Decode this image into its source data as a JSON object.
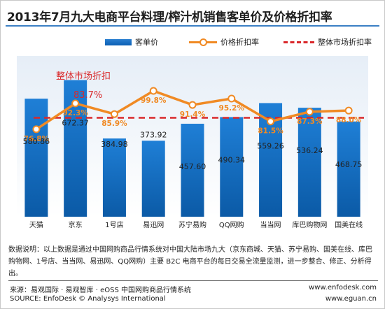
{
  "chart_data": {
    "type": "bar",
    "title": "2013年7月九大电商平台料理/榨汁机销售客单价及价格折扣率",
    "categories": [
      "天猫",
      "京东",
      "1号店",
      "易迅网",
      "苏宁易购",
      "QQ网购",
      "当当网",
      "库巴购物网",
      "国美在线"
    ],
    "series": [
      {
        "name": "客单价",
        "type": "bar",
        "values": [
          580.86,
          672.37,
          384.98,
          373.92,
          457.6,
          490.34,
          559.26,
          536.24,
          468.75
        ],
        "labels": [
          "580.86",
          "672.37",
          "384.98",
          "373.92",
          "457.60",
          "490.34",
          "559.26",
          "536.24",
          "468.75"
        ]
      },
      {
        "name": "价格折扣率",
        "type": "line",
        "values": [
          76.8,
          92.3,
          85.9,
          99.8,
          91.4,
          95.2,
          81.5,
          87.3,
          88.0
        ],
        "labels": [
          "76.8%",
          "92.3%",
          "85.9%",
          "99.8%",
          "91.4%",
          "95.2%",
          "81.5%",
          "87.3%",
          "88.0%"
        ]
      }
    ],
    "reference_line": {
      "name": "整体市场折扣率",
      "value": 83.7,
      "annotation": "整体市场折扣",
      "annotation_value": "83.7%"
    },
    "bar_range": [
      0,
      750
    ],
    "rate_range": [
      60,
      104
    ],
    "colors": {
      "bar": "#0b6ac2",
      "line": "#f08a24",
      "reference": "#d9282a"
    },
    "legend_position": "top"
  },
  "notes": "数据说明：以上数据是通过中国网购商品行情系统对中国大陆市场九大（京东商城、天猫、苏宁易购、国美在线、库巴购物网、1号店、当当网、易迅网、QQ网购）主要 B2C 电商平台的每日交易全流量监测，进一步整合、修正、分析得出。",
  "source_cn": "来源：易观国际 · 易观智库 · eOSS 中国网购商品行情系统",
  "source_en": "SOURCE: EnfoDesk © Analysys International",
  "website1": "www.enfodesk.com",
  "website2": "www.eguan.cn"
}
